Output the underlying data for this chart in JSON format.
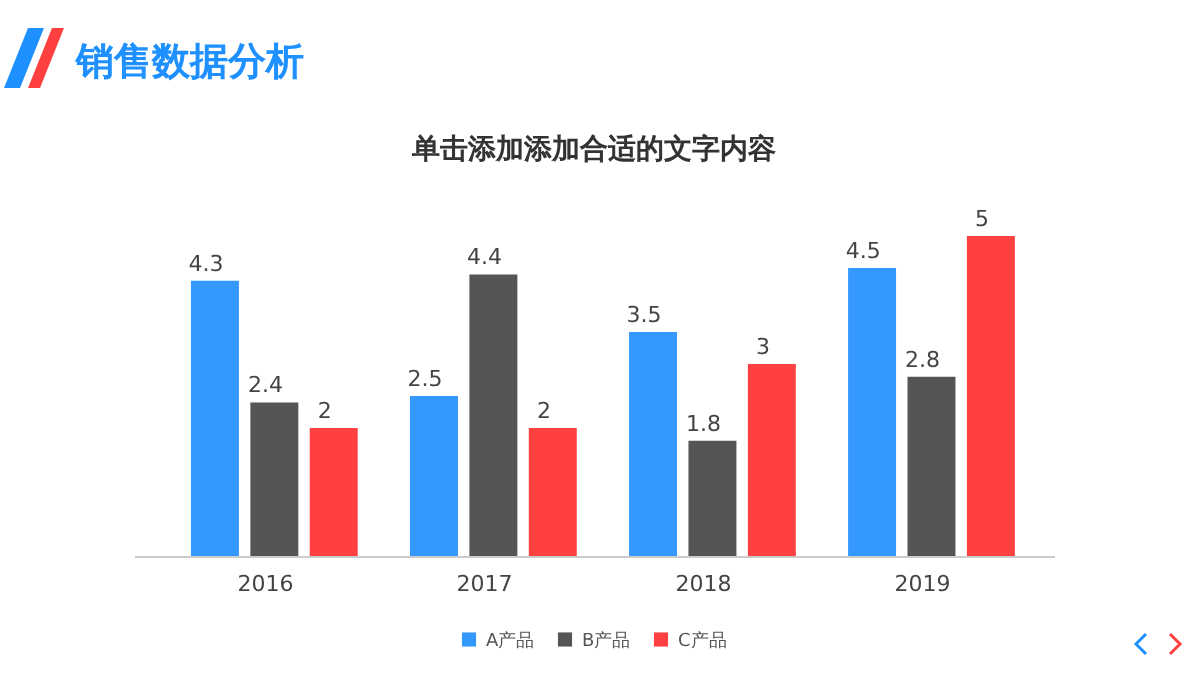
{
  "chart_data": {
    "type": "bar",
    "title": "单击添加添加合适的文字内容",
    "annotations": [
      "销售数据分析"
    ],
    "categories": [
      "2016",
      "2017",
      "2018",
      "2019"
    ],
    "series": [
      {
        "name": "A产品",
        "color": "#3399ff",
        "values": [
          4.3,
          2.5,
          3.5,
          4.5
        ]
      },
      {
        "name": "B产品",
        "color": "#555555",
        "values": [
          2.4,
          4.4,
          1.8,
          2.8
        ]
      },
      {
        "name": "C产品",
        "color": "#ff4040",
        "values": [
          2,
          2,
          3,
          5
        ]
      }
    ],
    "data_labels": true,
    "legend": "bottom"
  }
}
